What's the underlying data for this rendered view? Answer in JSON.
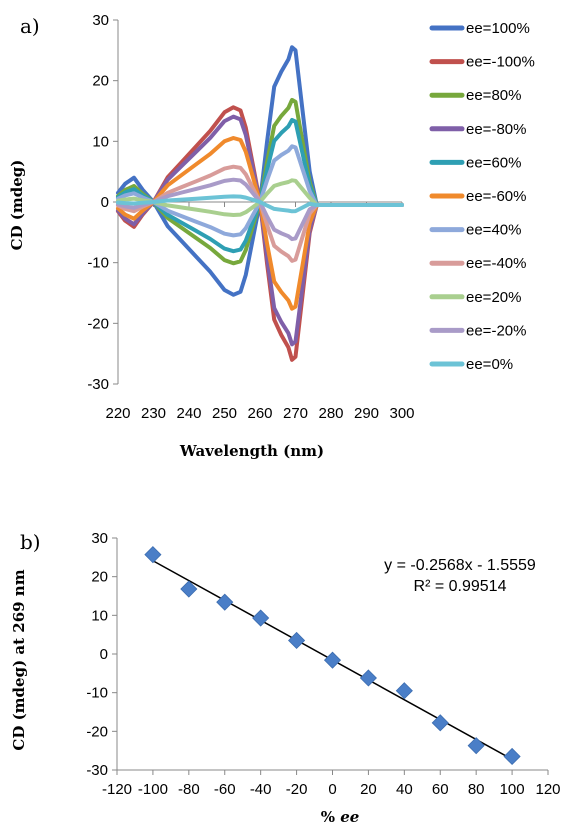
{
  "chart_data": [
    {
      "type": "line",
      "panel_label": "a)",
      "xlabel": "Wavelength (nm)",
      "ylabel": "CD (mdeg)",
      "xlim": [
        220,
        300
      ],
      "ylim": [
        -30,
        30
      ],
      "xticks": [
        220,
        230,
        240,
        250,
        260,
        270,
        280,
        290,
        300
      ],
      "yticks": [
        -30,
        -20,
        -10,
        0,
        10,
        20,
        30
      ],
      "legend_position": "right",
      "grid": false,
      "series": [
        {
          "name": "ee=100%",
          "color": "#4472C4",
          "scale": 1.0
        },
        {
          "name": "ee=-100%",
          "color": "#C0504D",
          "scale": -1.02
        },
        {
          "name": "ee=80%",
          "color": "#77A83C",
          "scale": 0.66
        },
        {
          "name": "ee=-80%",
          "color": "#7F5FA8",
          "scale": -0.92
        },
        {
          "name": "ee=60%",
          "color": "#2E9FB3",
          "scale": 0.53
        },
        {
          "name": "ee=-60%",
          "color": "#F08A2C",
          "scale": -0.69
        },
        {
          "name": "ee=40%",
          "color": "#8EA9DB",
          "scale": 0.36
        },
        {
          "name": "ee=-40%",
          "color": "#D89C9A",
          "scale": -0.38
        },
        {
          "name": "ee=20%",
          "color": "#A9CF8F",
          "scale": 0.14
        },
        {
          "name": "ee=-20%",
          "color": "#A99BC8",
          "scale": -0.24
        },
        {
          "name": "ee=0%",
          "color": "#6CC3D6",
          "scale": -0.06
        }
      ],
      "base_shape": {
        "x": [
          220,
          222,
          224.5,
          227,
          230,
          234,
          238,
          242,
          246,
          250,
          252.5,
          254.5,
          256,
          258,
          260,
          262,
          264,
          266,
          268,
          269,
          270,
          272,
          274,
          276,
          278,
          282,
          290,
          300
        ],
        "y": [
          1.5,
          3,
          4,
          2,
          0,
          -4,
          -6.5,
          -9,
          -11.5,
          -14.5,
          -15.3,
          -14.8,
          -12,
          -6,
          0,
          10,
          19,
          21.5,
          23.5,
          25.5,
          25,
          15,
          5,
          0.5,
          -0.3,
          -0.5,
          -0.5,
          -0.5
        ]
      }
    },
    {
      "type": "scatter",
      "panel_label": "b)",
      "xlabel": "% ee",
      "ylabel": "CD (mdeg) at 269 nm",
      "xlim": [
        -120,
        120
      ],
      "ylim": [
        -30,
        30
      ],
      "xticks": [
        -120,
        -100,
        -80,
        -60,
        -40,
        -20,
        0,
        20,
        40,
        60,
        80,
        100,
        120
      ],
      "yticks": [
        -30,
        -20,
        -10,
        0,
        10,
        20,
        30
      ],
      "grid": false,
      "points_x": [
        -100,
        -80,
        -60,
        -40,
        -20,
        0,
        20,
        40,
        60,
        80,
        100
      ],
      "points_y": [
        25.7,
        16.8,
        13.4,
        9.3,
        3.5,
        -1.6,
        -6.2,
        -9.5,
        -17.8,
        -23.7,
        -26.5
      ],
      "marker_color": "#4A7EC7",
      "trendline": {
        "slope": -0.2568,
        "intercept": -1.5559,
        "x_range": [
          -100,
          100
        ]
      },
      "equation": "y = -0.2568x - 1.5559",
      "r_squared": "R² = 0.99514"
    }
  ]
}
